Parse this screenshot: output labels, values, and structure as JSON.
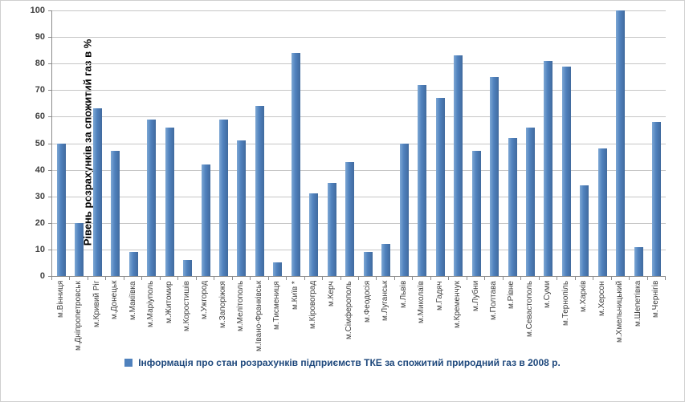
{
  "chart_data": {
    "type": "bar",
    "title": "",
    "ylabel": "Рівень розрахунків за спожитий газ в %",
    "xlabel": "",
    "ylim": [
      0,
      100
    ],
    "ytick_step": 10,
    "grid": true,
    "legend_position": "bottom",
    "legend": [
      "Інформація про стан розрахунків підприємств ТКЕ за спожитий природний газ в 2008 р."
    ],
    "bar_color": "#4F81BD",
    "categories": [
      "м.Вінниця",
      "м.Дніпропетровськ",
      "м.Кривий Ріг",
      "м.Донецьк",
      "м.Макіївка",
      "м.Маріуполь",
      "м.Житомир",
      "м.Коростишів",
      "м.Ужгород",
      "м.Запоріжжя",
      "м.Мелітополь",
      "м.Івано-Франківськ",
      "м.Тисмениця",
      "м.Київ *",
      "м.Кіровоград",
      "м.Керч",
      "м.Сімферополь",
      "м.Феодосія",
      "м.Луганськ",
      "м.Львів",
      "м.Миколаїв",
      "м.Гадяч",
      "м.Кременчук",
      "м.Лубни",
      "м.Полтава",
      "м.Рівне",
      "м.Севастополь",
      "м.Суми",
      "м.Тернопіль",
      "м.Харків",
      "м.Херсон",
      "м.Хмельницький",
      "м.Шепетівка",
      "м.Чернігів"
    ],
    "values": [
      50,
      20,
      63,
      47,
      9,
      59,
      56,
      6,
      42,
      59,
      51,
      64,
      5,
      84,
      31,
      35,
      43,
      9,
      12,
      50,
      72,
      67,
      83,
      47,
      75,
      52,
      56,
      81,
      79,
      34,
      48,
      100,
      11,
      58
    ]
  },
  "colors": {
    "bar": "#4F81BD",
    "gridline": "#C6C6C6",
    "axis": "#8C8C8C",
    "legend_text": "#1F497D",
    "tick_text": "#404040"
  }
}
